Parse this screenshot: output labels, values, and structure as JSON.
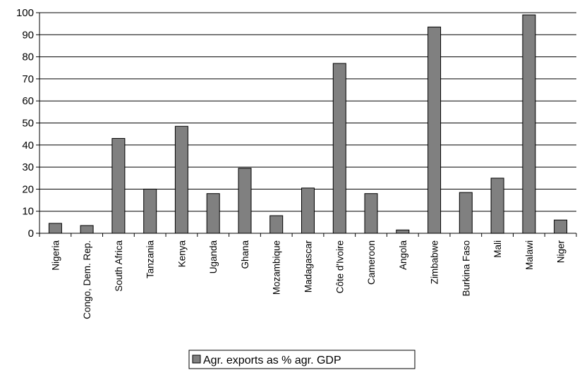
{
  "chart_data": {
    "type": "bar",
    "categories": [
      "Nigeria",
      "Congo, Dem. Rep.",
      "South Africa",
      "Tanzania",
      "Kenya",
      "Uganda",
      "Ghana",
      "Mozambique",
      "Madagascar",
      "Côte d'Ivoire",
      "Cameroon",
      "Angola",
      "Zimbabwe",
      "Burkina Faso",
      "Mali",
      "Malawi",
      "Niger"
    ],
    "series": [
      {
        "name": "Agr. exports as % agr. GDP",
        "values": [
          4.5,
          3.5,
          43,
          20,
          48.5,
          18,
          29.5,
          8,
          20.5,
          77,
          18,
          1.5,
          93.5,
          18.5,
          25,
          99,
          6
        ]
      }
    ],
    "ylim": [
      0,
      100
    ],
    "yticks": [
      0,
      10,
      20,
      30,
      40,
      50,
      60,
      70,
      80,
      90,
      100
    ],
    "grid": true,
    "legend_position": "bottom-center",
    "bar_color": "#808080",
    "title": "",
    "xlabel": "",
    "ylabel": ""
  }
}
